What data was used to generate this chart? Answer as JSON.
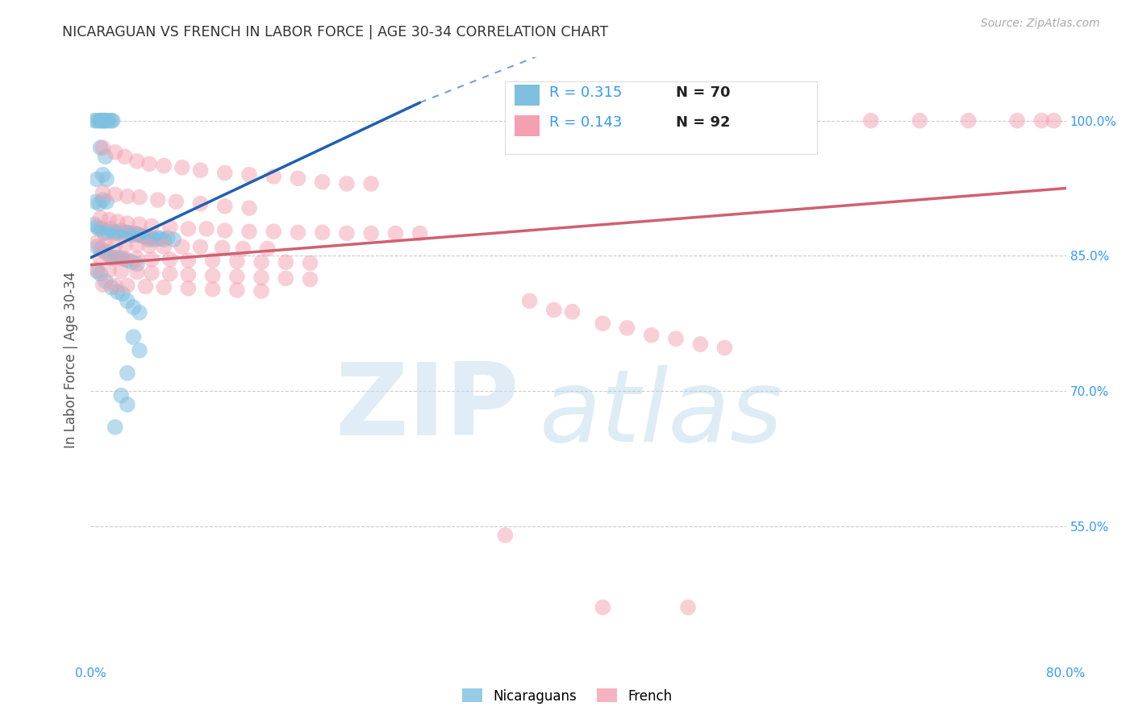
{
  "title": "NICARAGUAN VS FRENCH IN LABOR FORCE | AGE 30-34 CORRELATION CHART",
  "source": "Source: ZipAtlas.com",
  "ylabel": "In Labor Force | Age 30-34",
  "xlim": [
    0.0,
    0.8
  ],
  "ylim": [
    0.4,
    1.07
  ],
  "yticks": [
    0.55,
    0.7,
    0.85,
    1.0
  ],
  "ytick_labels": [
    "55.0%",
    "70.0%",
    "85.0%",
    "100.0%"
  ],
  "xticks": [
    0.0,
    0.1,
    0.2,
    0.3,
    0.4,
    0.5,
    0.6,
    0.7,
    0.8
  ],
  "xtick_labels": [
    "0.0%",
    "",
    "",
    "",
    "",
    "",
    "",
    "",
    "80.0%"
  ],
  "blue_color": "#7fbfdf",
  "pink_color": "#f4a0b0",
  "trend_blue": "#2060b0",
  "trend_pink": "#d06070",
  "axis_label_color": "#3399ff",
  "title_color": "#333333",
  "grid_color": "#cccccc",
  "background_color": "#ffffff",
  "blue_line_solid": [
    [
      0.0,
      0.848
    ],
    [
      0.27,
      1.02
    ]
  ],
  "blue_line_dashed": [
    [
      0.27,
      1.02
    ],
    [
      0.42,
      1.1
    ]
  ],
  "pink_line": [
    [
      0.0,
      0.84
    ],
    [
      0.8,
      0.925
    ]
  ],
  "nicaraguan_points": [
    [
      0.003,
      1.0
    ],
    [
      0.005,
      1.0
    ],
    [
      0.007,
      1.0
    ],
    [
      0.008,
      1.0
    ],
    [
      0.009,
      1.0
    ],
    [
      0.01,
      1.0
    ],
    [
      0.011,
      1.0
    ],
    [
      0.012,
      1.0
    ],
    [
      0.013,
      1.0
    ],
    [
      0.015,
      1.0
    ],
    [
      0.017,
      1.0
    ],
    [
      0.018,
      1.0
    ],
    [
      0.008,
      0.97
    ],
    [
      0.012,
      0.96
    ],
    [
      0.005,
      0.935
    ],
    [
      0.01,
      0.94
    ],
    [
      0.013,
      0.935
    ],
    [
      0.004,
      0.91
    ],
    [
      0.007,
      0.908
    ],
    [
      0.01,
      0.912
    ],
    [
      0.013,
      0.91
    ],
    [
      0.003,
      0.885
    ],
    [
      0.005,
      0.882
    ],
    [
      0.007,
      0.88
    ],
    [
      0.009,
      0.88
    ],
    [
      0.011,
      0.875
    ],
    [
      0.014,
      0.876
    ],
    [
      0.016,
      0.88
    ],
    [
      0.018,
      0.877
    ],
    [
      0.02,
      0.875
    ],
    [
      0.022,
      0.876
    ],
    [
      0.025,
      0.878
    ],
    [
      0.028,
      0.875
    ],
    [
      0.03,
      0.876
    ],
    [
      0.032,
      0.875
    ],
    [
      0.034,
      0.873
    ],
    [
      0.036,
      0.875
    ],
    [
      0.038,
      0.874
    ],
    [
      0.04,
      0.873
    ],
    [
      0.042,
      0.872
    ],
    [
      0.044,
      0.872
    ],
    [
      0.046,
      0.87
    ],
    [
      0.048,
      0.868
    ],
    [
      0.05,
      0.87
    ],
    [
      0.052,
      0.868
    ],
    [
      0.055,
      0.87
    ],
    [
      0.057,
      0.869
    ],
    [
      0.06,
      0.868
    ],
    [
      0.063,
      0.87
    ],
    [
      0.068,
      0.868
    ],
    [
      0.005,
      0.86
    ],
    [
      0.008,
      0.858
    ],
    [
      0.011,
      0.855
    ],
    [
      0.014,
      0.852
    ],
    [
      0.017,
      0.848
    ],
    [
      0.02,
      0.848
    ],
    [
      0.023,
      0.848
    ],
    [
      0.026,
      0.847
    ],
    [
      0.03,
      0.845
    ],
    [
      0.034,
      0.843
    ],
    [
      0.038,
      0.841
    ],
    [
      0.005,
      0.833
    ],
    [
      0.008,
      0.83
    ],
    [
      0.012,
      0.822
    ],
    [
      0.017,
      0.815
    ],
    [
      0.022,
      0.81
    ],
    [
      0.026,
      0.808
    ],
    [
      0.03,
      0.8
    ],
    [
      0.035,
      0.793
    ],
    [
      0.04,
      0.787
    ],
    [
      0.035,
      0.76
    ],
    [
      0.04,
      0.745
    ],
    [
      0.03,
      0.72
    ],
    [
      0.025,
      0.695
    ],
    [
      0.03,
      0.685
    ],
    [
      0.02,
      0.66
    ]
  ],
  "french_points": [
    [
      0.64,
      1.0
    ],
    [
      0.68,
      1.0
    ],
    [
      0.72,
      1.0
    ],
    [
      0.76,
      1.0
    ],
    [
      0.78,
      1.0
    ],
    [
      0.79,
      1.0
    ],
    [
      0.01,
      0.97
    ],
    [
      0.02,
      0.965
    ],
    [
      0.028,
      0.96
    ],
    [
      0.038,
      0.955
    ],
    [
      0.048,
      0.952
    ],
    [
      0.06,
      0.95
    ],
    [
      0.075,
      0.948
    ],
    [
      0.09,
      0.945
    ],
    [
      0.11,
      0.942
    ],
    [
      0.13,
      0.94
    ],
    [
      0.15,
      0.938
    ],
    [
      0.17,
      0.936
    ],
    [
      0.19,
      0.932
    ],
    [
      0.21,
      0.93
    ],
    [
      0.23,
      0.93
    ],
    [
      0.01,
      0.92
    ],
    [
      0.02,
      0.918
    ],
    [
      0.03,
      0.916
    ],
    [
      0.04,
      0.915
    ],
    [
      0.055,
      0.912
    ],
    [
      0.07,
      0.91
    ],
    [
      0.09,
      0.908
    ],
    [
      0.11,
      0.905
    ],
    [
      0.13,
      0.903
    ],
    [
      0.008,
      0.892
    ],
    [
      0.015,
      0.89
    ],
    [
      0.022,
      0.888
    ],
    [
      0.03,
      0.886
    ],
    [
      0.04,
      0.885
    ],
    [
      0.05,
      0.883
    ],
    [
      0.065,
      0.882
    ],
    [
      0.08,
      0.88
    ],
    [
      0.095,
      0.88
    ],
    [
      0.11,
      0.878
    ],
    [
      0.13,
      0.877
    ],
    [
      0.15,
      0.877
    ],
    [
      0.17,
      0.876
    ],
    [
      0.19,
      0.876
    ],
    [
      0.21,
      0.875
    ],
    [
      0.23,
      0.875
    ],
    [
      0.25,
      0.875
    ],
    [
      0.27,
      0.875
    ],
    [
      0.005,
      0.865
    ],
    [
      0.012,
      0.863
    ],
    [
      0.02,
      0.862
    ],
    [
      0.028,
      0.862
    ],
    [
      0.038,
      0.862
    ],
    [
      0.048,
      0.861
    ],
    [
      0.06,
      0.86
    ],
    [
      0.075,
      0.86
    ],
    [
      0.09,
      0.86
    ],
    [
      0.108,
      0.859
    ],
    [
      0.125,
      0.858
    ],
    [
      0.145,
      0.858
    ],
    [
      0.008,
      0.848
    ],
    [
      0.018,
      0.847
    ],
    [
      0.028,
      0.847
    ],
    [
      0.038,
      0.847
    ],
    [
      0.05,
      0.846
    ],
    [
      0.065,
      0.846
    ],
    [
      0.08,
      0.845
    ],
    [
      0.1,
      0.845
    ],
    [
      0.12,
      0.844
    ],
    [
      0.14,
      0.843
    ],
    [
      0.16,
      0.843
    ],
    [
      0.18,
      0.842
    ],
    [
      0.005,
      0.835
    ],
    [
      0.015,
      0.834
    ],
    [
      0.025,
      0.833
    ],
    [
      0.038,
      0.832
    ],
    [
      0.05,
      0.831
    ],
    [
      0.065,
      0.83
    ],
    [
      0.08,
      0.829
    ],
    [
      0.1,
      0.828
    ],
    [
      0.12,
      0.827
    ],
    [
      0.14,
      0.826
    ],
    [
      0.16,
      0.825
    ],
    [
      0.18,
      0.824
    ],
    [
      0.01,
      0.818
    ],
    [
      0.02,
      0.817
    ],
    [
      0.03,
      0.817
    ],
    [
      0.045,
      0.816
    ],
    [
      0.06,
      0.815
    ],
    [
      0.08,
      0.814
    ],
    [
      0.1,
      0.813
    ],
    [
      0.12,
      0.812
    ],
    [
      0.14,
      0.811
    ],
    [
      0.36,
      0.8
    ],
    [
      0.38,
      0.79
    ],
    [
      0.395,
      0.788
    ],
    [
      0.42,
      0.775
    ],
    [
      0.44,
      0.77
    ],
    [
      0.46,
      0.762
    ],
    [
      0.48,
      0.758
    ],
    [
      0.5,
      0.752
    ],
    [
      0.52,
      0.748
    ],
    [
      0.34,
      0.54
    ],
    [
      0.42,
      0.46
    ],
    [
      0.49,
      0.46
    ]
  ]
}
